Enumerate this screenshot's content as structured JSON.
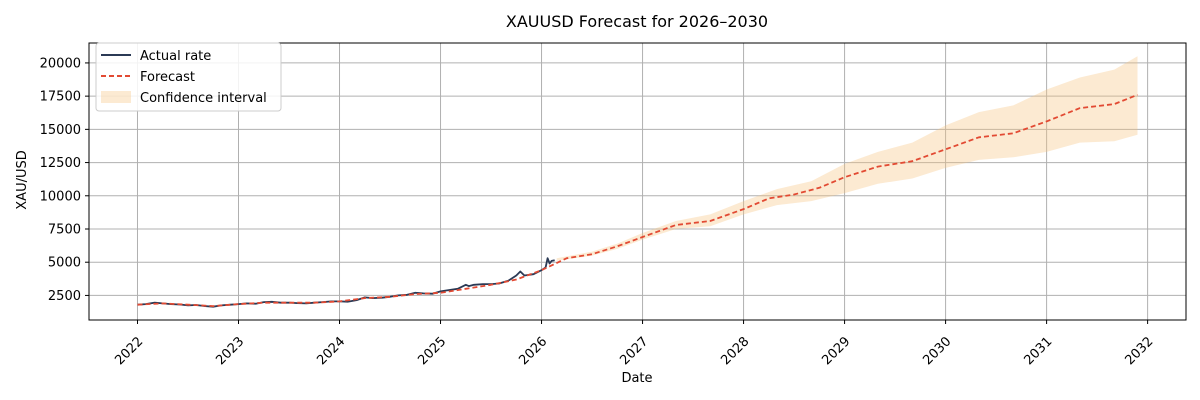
{
  "chart_data": {
    "type": "line",
    "title": "XAUUSD Forecast for 2026–2030",
    "xlabel": "Date",
    "ylabel": "XAU/USD",
    "xlim": [
      2021.52,
      2032.38
    ],
    "ylim": [
      650,
      21500
    ],
    "grid": true,
    "legend_position": "top-left",
    "x_ticks": [
      2022,
      2023,
      2024,
      2025,
      2026,
      2027,
      2028,
      2029,
      2030,
      2031,
      2032
    ],
    "x_tick_labels": [
      "2022",
      "2023",
      "2024",
      "2025",
      "2026",
      "2027",
      "2028",
      "2029",
      "2030",
      "2031",
      "2032"
    ],
    "y_ticks": [
      2500,
      5000,
      7500,
      10000,
      12500,
      15000,
      17500,
      20000
    ],
    "y_tick_labels": [
      "2500",
      "5000",
      "7500",
      "10000",
      "12500",
      "15000",
      "17500",
      "20000"
    ],
    "colors": {
      "actual": "#2b3a55",
      "forecast": "#e24a33",
      "band": "#f6c27d",
      "grid": "#b0b0b0"
    },
    "series": [
      {
        "name": "Actual rate",
        "style": "solid",
        "x": [
          2022.0,
          2022.08,
          2022.17,
          2022.25,
          2022.33,
          2022.42,
          2022.5,
          2022.58,
          2022.67,
          2022.75,
          2022.83,
          2022.92,
          2023.0,
          2023.08,
          2023.17,
          2023.25,
          2023.33,
          2023.42,
          2023.5,
          2023.58,
          2023.67,
          2023.75,
          2023.83,
          2023.92,
          2024.0,
          2024.08,
          2024.17,
          2024.25,
          2024.33,
          2024.42,
          2024.5,
          2024.58,
          2024.67,
          2024.75,
          2024.83,
          2024.92,
          2025.0,
          2025.08,
          2025.17,
          2025.25,
          2025.28,
          2025.33,
          2025.42,
          2025.5,
          2025.58,
          2025.67,
          2025.75,
          2025.79,
          2025.83,
          2025.92,
          2026.0,
          2026.04,
          2026.06,
          2026.08,
          2026.1,
          2026.13
        ],
        "y": [
          1800,
          1850,
          1950,
          1900,
          1850,
          1820,
          1750,
          1780,
          1700,
          1650,
          1750,
          1800,
          1850,
          1900,
          1880,
          2000,
          2020,
          1950,
          1960,
          1920,
          1900,
          1950,
          2000,
          2050,
          2050,
          2030,
          2150,
          2350,
          2300,
          2330,
          2400,
          2500,
          2550,
          2700,
          2650,
          2630,
          2800,
          2900,
          3000,
          3300,
          3200,
          3300,
          3350,
          3350,
          3400,
          3600,
          4000,
          4300,
          4000,
          4100,
          4400,
          4600,
          5300,
          4900,
          5100,
          5150
        ]
      },
      {
        "name": "Forecast",
        "style": "dashed",
        "x": [
          2022.0,
          2022.25,
          2022.5,
          2022.75,
          2023.0,
          2023.25,
          2023.5,
          2023.75,
          2024.0,
          2024.25,
          2024.5,
          2024.75,
          2025.0,
          2025.25,
          2025.5,
          2025.75,
          2026.0,
          2026.25,
          2026.5,
          2026.75,
          2027.0,
          2027.33,
          2027.67,
          2028.0,
          2028.25,
          2028.5,
          2028.75,
          2029.0,
          2029.33,
          2029.67,
          2030.0,
          2030.33,
          2030.67,
          2031.0,
          2031.33,
          2031.67,
          2031.9
        ],
        "y": [
          1800,
          1900,
          1800,
          1700,
          1850,
          1950,
          1950,
          1950,
          2050,
          2300,
          2400,
          2600,
          2700,
          3000,
          3300,
          3700,
          4400,
          5300,
          5600,
          6200,
          6900,
          7800,
          8100,
          9000,
          9800,
          10100,
          10600,
          11400,
          12200,
          12600,
          13500,
          14400,
          14700,
          15600,
          16600,
          16900,
          17600
        ]
      }
    ],
    "band": {
      "name": "Confidence interval",
      "x": [
        2026.15,
        2026.5,
        2026.75,
        2027.0,
        2027.33,
        2027.67,
        2028.0,
        2028.33,
        2028.67,
        2029.0,
        2029.33,
        2029.67,
        2030.0,
        2030.33,
        2030.67,
        2031.0,
        2031.33,
        2031.67,
        2031.9
      ],
      "lower": [
        5100,
        5500,
        6000,
        6700,
        7500,
        7700,
        8600,
        9300,
        9600,
        10200,
        10900,
        11300,
        12100,
        12700,
        12900,
        13300,
        14000,
        14100,
        14600
      ],
      "upper": [
        5300,
        5800,
        6400,
        7200,
        8100,
        8600,
        9600,
        10500,
        11100,
        12400,
        13300,
        14000,
        15300,
        16300,
        16800,
        18000,
        18900,
        19500,
        20500
      ]
    }
  }
}
